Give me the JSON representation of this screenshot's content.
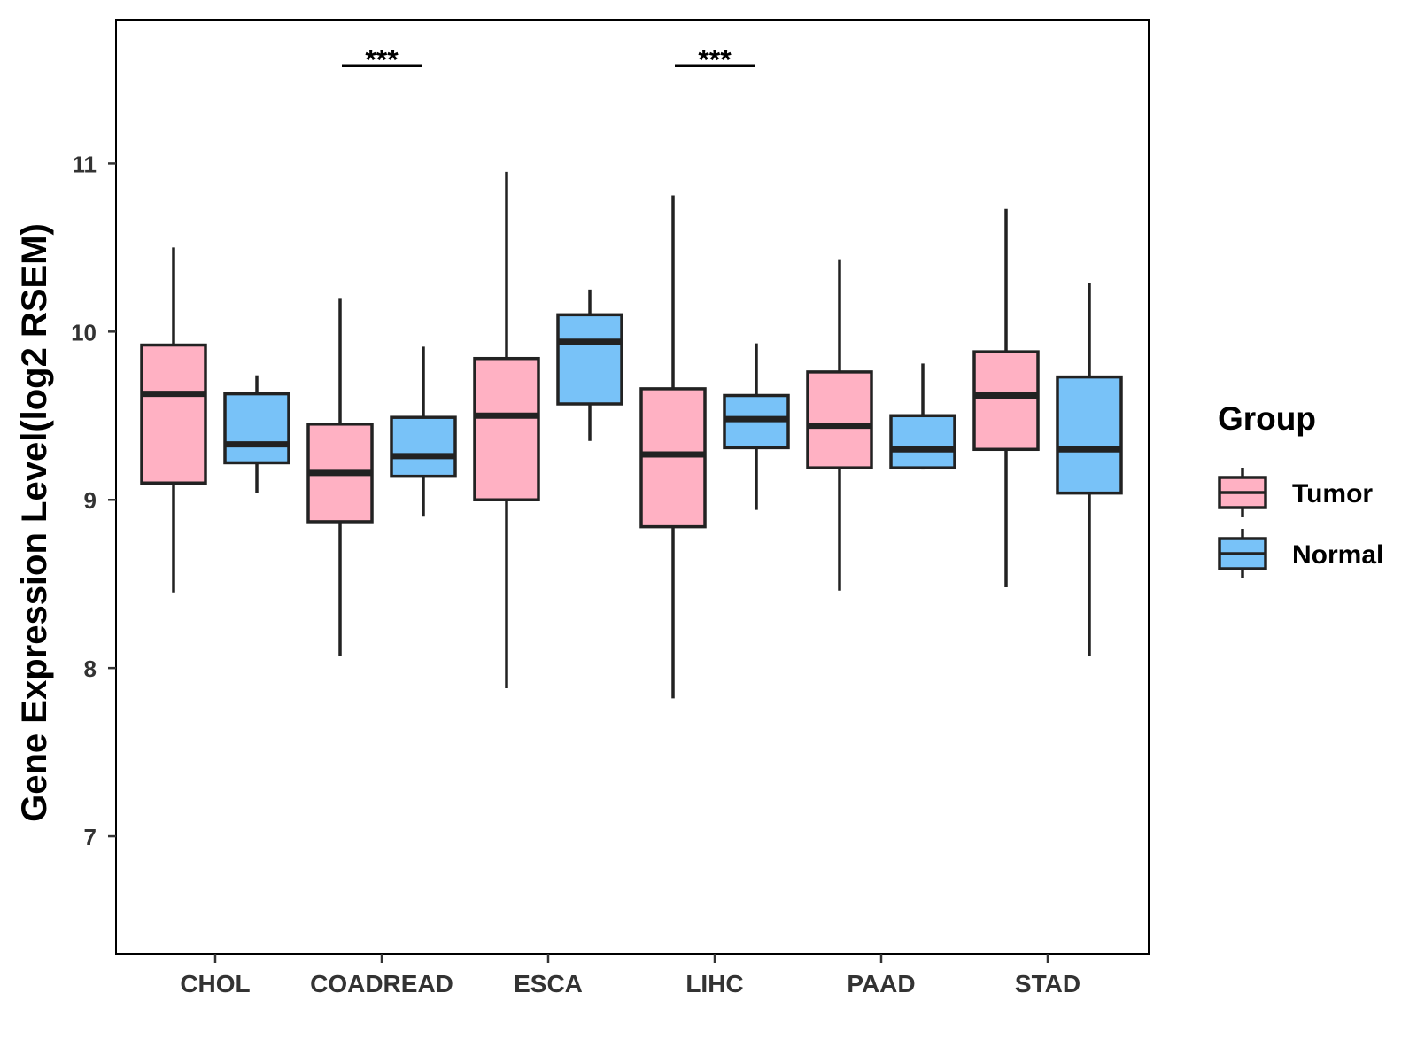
{
  "chart_data": {
    "type": "box",
    "title": "",
    "xlabel": "",
    "ylabel": "Gene Expression Level(log2 RSEM)",
    "ylim": [
      6.3,
      11.85
    ],
    "yticks": [
      7,
      8,
      9,
      10,
      11
    ],
    "categories": [
      "CHOL",
      "COADREAD",
      "ESCA",
      "LIHC",
      "PAAD",
      "STAD"
    ],
    "legend": {
      "title": "Group",
      "position": "right",
      "entries": [
        "Tumor",
        "Normal"
      ]
    },
    "colors": {
      "Tumor": "#FFB1C3",
      "Normal": "#78C2F8",
      "stroke": "#222222"
    },
    "series": [
      {
        "name": "Tumor",
        "boxes": [
          {
            "category": "CHOL",
            "min": 8.45,
            "q1": 9.1,
            "median": 9.63,
            "q3": 9.92,
            "max": 10.5
          },
          {
            "category": "COADREAD",
            "min": 8.07,
            "q1": 8.87,
            "median": 9.16,
            "q3": 9.45,
            "max": 10.2
          },
          {
            "category": "ESCA",
            "min": 7.88,
            "q1": 9.0,
            "median": 9.5,
            "q3": 9.84,
            "max": 10.95
          },
          {
            "category": "LIHC",
            "min": 7.82,
            "q1": 8.84,
            "median": 9.27,
            "q3": 9.66,
            "max": 10.81
          },
          {
            "category": "PAAD",
            "min": 8.46,
            "q1": 9.19,
            "median": 9.44,
            "q3": 9.76,
            "max": 10.43
          },
          {
            "category": "STAD",
            "min": 8.48,
            "q1": 9.3,
            "median": 9.62,
            "q3": 9.88,
            "max": 10.73
          }
        ]
      },
      {
        "name": "Normal",
        "boxes": [
          {
            "category": "CHOL",
            "min": 9.04,
            "q1": 9.22,
            "median": 9.33,
            "q3": 9.63,
            "max": 9.74
          },
          {
            "category": "COADREAD",
            "min": 8.9,
            "q1": 9.14,
            "median": 9.26,
            "q3": 9.49,
            "max": 9.91
          },
          {
            "category": "ESCA",
            "min": 9.35,
            "q1": 9.57,
            "median": 9.94,
            "q3": 10.1,
            "max": 10.25
          },
          {
            "category": "LIHC",
            "min": 8.94,
            "q1": 9.31,
            "median": 9.48,
            "q3": 9.62,
            "max": 9.93
          },
          {
            "category": "PAAD",
            "min": 9.18,
            "q1": 9.19,
            "median": 9.3,
            "q3": 9.5,
            "max": 9.81
          },
          {
            "category": "STAD",
            "min": 8.07,
            "q1": 9.04,
            "median": 9.3,
            "q3": 9.73,
            "max": 10.29
          }
        ]
      }
    ],
    "annotations": [
      {
        "category": "COADREAD",
        "y": 11.58,
        "label": "***"
      },
      {
        "category": "LIHC",
        "y": 11.58,
        "label": "***"
      }
    ]
  }
}
